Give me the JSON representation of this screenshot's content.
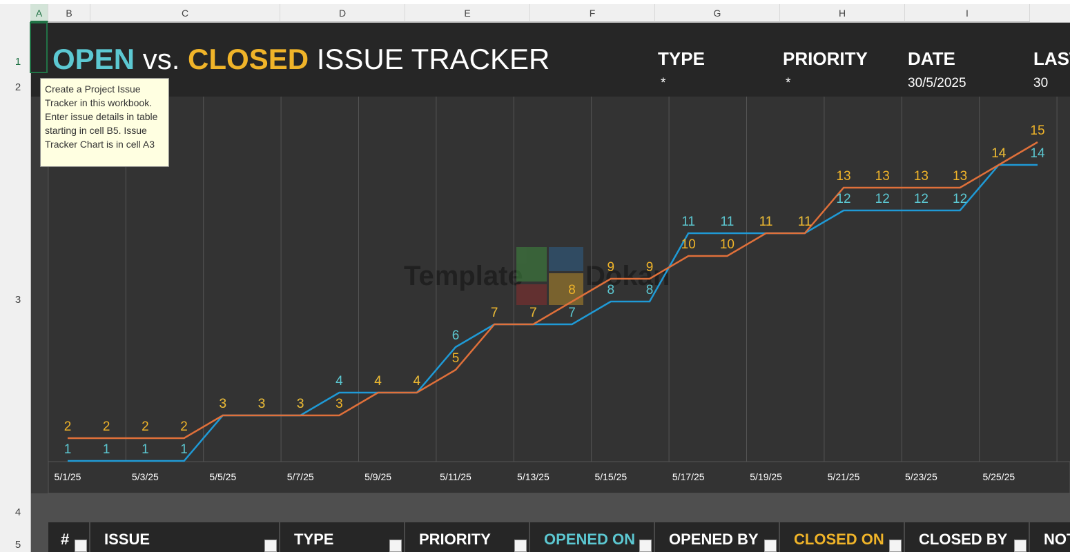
{
  "sheet": {
    "columns": [
      "A",
      "B",
      "C",
      "D",
      "E",
      "F",
      "G",
      "H",
      "I"
    ],
    "rows": [
      "1",
      "2",
      "3",
      "4",
      "5"
    ],
    "title": {
      "open": "OPEN",
      "vs": "vs.",
      "closed": "CLOSED",
      "rest": "ISSUE TRACKER"
    },
    "filters": [
      {
        "label": "TYPE",
        "value": "*"
      },
      {
        "label": "PRIORITY",
        "value": "*"
      },
      {
        "label": "DATE",
        "value": "30/5/2025"
      },
      {
        "label": "LAST",
        "value": "30"
      }
    ],
    "comment": "Create a Project Issue Tracker in this workbook. Enter issue details in table starting in cell B5. Issue Tracker Chart is in cell A3",
    "watermark": [
      "Template",
      "Dokan"
    ],
    "table_headers": [
      "#",
      "ISSUE",
      "TYPE",
      "PRIORITY",
      "OPENED ON",
      "OPENED BY",
      "CLOSED ON",
      "CLOSED BY",
      "NOTES"
    ]
  },
  "chart_data": {
    "type": "line",
    "categories": [
      "5/1/25",
      null,
      "5/3/25",
      null,
      "5/5/25",
      null,
      "5/7/25",
      null,
      "5/9/25",
      null,
      "5/11/25",
      null,
      "5/13/25",
      null,
      "5/15/25",
      null,
      "5/17/25",
      null,
      "5/19/25",
      null,
      "5/21/25",
      null,
      "5/23/25",
      null,
      "5/25/25",
      null
    ],
    "series": [
      {
        "color": "#1f9ad6",
        "label_color": "#5cc8d2",
        "values": [
          1,
          1,
          1,
          1,
          3,
          3,
          3,
          4,
          4,
          4,
          6,
          7,
          7,
          7,
          8,
          8,
          11,
          11,
          11,
          11,
          12,
          12,
          12,
          12,
          14,
          14
        ]
      },
      {
        "color": "#e0703a",
        "label_color": "#f0b429",
        "values": [
          2,
          2,
          2,
          2,
          3,
          3,
          3,
          3,
          4,
          4,
          5,
          7,
          7,
          8,
          9,
          9,
          10,
          10,
          11,
          11,
          13,
          13,
          13,
          13,
          14,
          15
        ]
      }
    ],
    "ylim": [
      1,
      17
    ]
  }
}
